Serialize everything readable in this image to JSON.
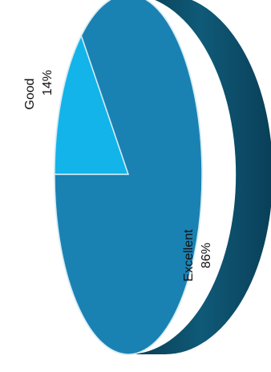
{
  "chart_data": {
    "type": "pie",
    "title": "",
    "categories": [
      "Excellent",
      "Good"
    ],
    "values": [
      86,
      14
    ],
    "percent_labels": [
      "86%",
      "14%"
    ],
    "colors": {
      "Excellent": "#1a82b3",
      "Good": "#12b4ea",
      "side": "#0d4f6b",
      "edge": "#d7ecf5"
    },
    "legend": "none",
    "style": "3d"
  }
}
